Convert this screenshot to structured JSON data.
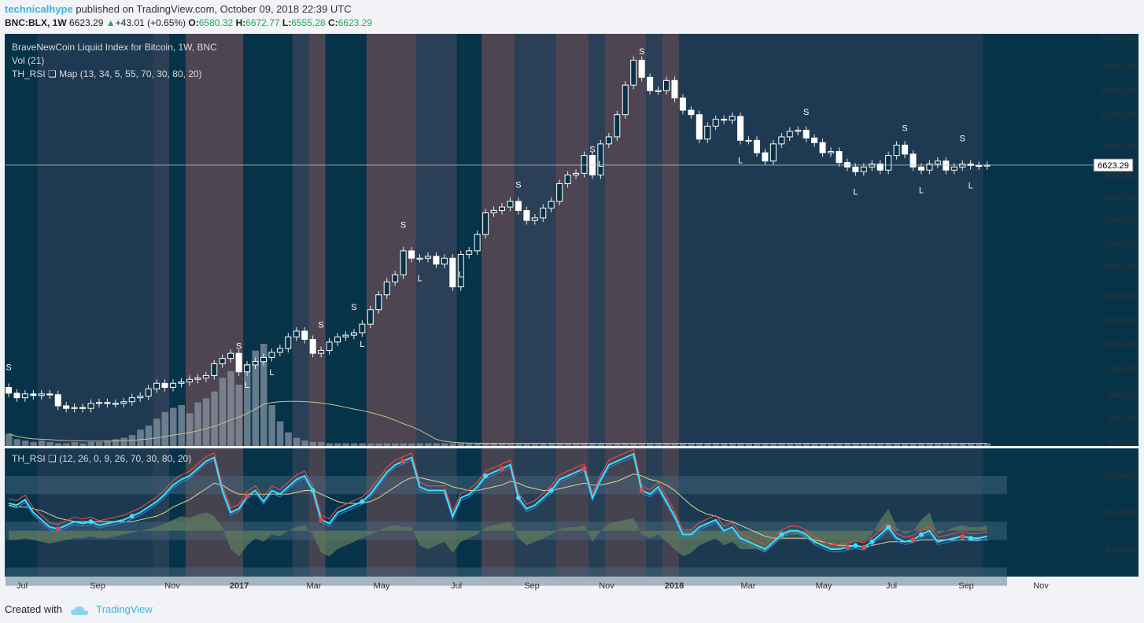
{
  "header": {
    "user": "technicalhype",
    "published_text": "published on TradingView.com, October 09, 2018 22:39 UTC",
    "symbol": "BNC:BLX, 1W",
    "price": "6623.29",
    "change": "+43.01 (+0.65%)",
    "o_label": "O:",
    "o_value": "6580.32",
    "h_label": "H:",
    "h_value": "6672.77",
    "l_label": "L:",
    "l_value": "6555.28",
    "c_label": "C:",
    "c_value": "6623.29"
  },
  "footer": {
    "created_with": "Created with",
    "brand": "TradingView"
  },
  "colors": {
    "panel_bg": "#073349",
    "band_red": "#4e4552",
    "band_slate": "#2b4056",
    "band_mid": "#1e3a52",
    "rsi_cyan": "#3ee0f5",
    "rsi_red": "#e04a4a",
    "rsi_white": "#ffffff",
    "signal_yellow": "#d8d890",
    "histo_green": "#5f7a5e",
    "volume_bar": "#8a9aa8",
    "volume_ma": "#c8c090"
  },
  "chart_data": [
    {
      "type": "candlestick",
      "title": "BraveNewCoin Liquid Index for Bitcoin, 1W, BNC",
      "indicator_labels": [
        "Vol (21)",
        "TH_RSI ❑ Map (13, 34, 5, 55, 70, 30, 80, 20)"
      ],
      "y_scale": "log",
      "y_ticks": [
        "24000.00",
        "18000.00",
        "14000.00",
        "11000.00",
        "8000.00",
        "6000.00",
        "4800.00",
        "3800.00",
        "3000.00",
        "2400.00",
        "1800.00",
        "1400.00",
        "1100.00",
        "860.00",
        "660.00",
        "520.00",
        "410.00"
      ],
      "last_price_label": "6623.29",
      "x_ticks": [
        "Jul",
        "Sep",
        "Nov",
        "2017",
        "Mar",
        "May",
        "Jul",
        "Sep",
        "Nov",
        "2018",
        "Mar",
        "May",
        "Jul",
        "Sep",
        "Nov"
      ],
      "x_ticks_bold": [
        "2017",
        "2018"
      ],
      "dates": [
        "2016-06-27",
        "2016-07-04",
        "2016-07-11",
        "2016-07-18",
        "2016-07-25",
        "2016-08-01",
        "2016-08-08",
        "2016-08-15",
        "2016-08-22",
        "2016-08-29",
        "2016-09-05",
        "2016-09-12",
        "2016-09-19",
        "2016-09-26",
        "2016-10-03",
        "2016-10-10",
        "2016-10-17",
        "2016-10-24",
        "2016-10-31",
        "2016-11-07",
        "2016-11-14",
        "2016-11-21",
        "2016-11-28",
        "2016-12-05",
        "2016-12-12",
        "2016-12-19",
        "2016-12-26",
        "2017-01-02",
        "2017-01-09",
        "2017-01-16",
        "2017-01-23",
        "2017-01-30",
        "2017-02-06",
        "2017-02-13",
        "2017-02-20",
        "2017-02-27",
        "2017-03-06",
        "2017-03-13",
        "2017-03-20",
        "2017-03-27",
        "2017-04-03",
        "2017-04-10",
        "2017-04-17",
        "2017-04-24",
        "2017-05-01",
        "2017-05-08",
        "2017-05-15",
        "2017-05-22",
        "2017-05-29",
        "2017-06-05",
        "2017-06-12",
        "2017-06-19",
        "2017-06-26",
        "2017-07-03",
        "2017-07-10",
        "2017-07-17",
        "2017-07-24",
        "2017-07-31",
        "2017-08-07",
        "2017-08-14",
        "2017-08-21",
        "2017-08-28",
        "2017-09-04",
        "2017-09-11",
        "2017-09-18",
        "2017-09-25",
        "2017-10-02",
        "2017-10-09",
        "2017-10-16",
        "2017-10-23",
        "2017-10-30",
        "2017-11-06",
        "2017-11-13",
        "2017-11-20",
        "2017-11-27",
        "2017-12-04",
        "2017-12-11",
        "2017-12-18",
        "2017-12-25",
        "2018-01-01",
        "2018-01-08",
        "2018-01-15",
        "2018-01-22",
        "2018-01-29",
        "2018-02-05",
        "2018-02-12",
        "2018-02-19",
        "2018-02-26",
        "2018-03-05",
        "2018-03-12",
        "2018-03-19",
        "2018-03-26",
        "2018-04-02",
        "2018-04-09",
        "2018-04-16",
        "2018-04-23",
        "2018-04-30",
        "2018-05-07",
        "2018-05-14",
        "2018-05-21",
        "2018-05-28",
        "2018-06-04",
        "2018-06-11",
        "2018-06-18",
        "2018-06-25",
        "2018-07-02",
        "2018-07-09",
        "2018-07-16",
        "2018-07-23",
        "2018-07-30",
        "2018-08-06",
        "2018-08-13",
        "2018-08-20",
        "2018-08-27",
        "2018-09-03",
        "2018-09-10",
        "2018-09-17",
        "2018-09-24",
        "2018-10-01",
        "2018-10-08"
      ],
      "close": [
        670,
        640,
        665,
        655,
        665,
        660,
        590,
        575,
        580,
        575,
        605,
        610,
        605,
        605,
        615,
        640,
        650,
        700,
        740,
        710,
        740,
        750,
        770,
        780,
        800,
        900,
        950,
        1000,
        830,
        890,
        920,
        960,
        1010,
        1050,
        1180,
        1250,
        1150,
        1000,
        1030,
        1120,
        1180,
        1200,
        1230,
        1340,
        1550,
        1800,
        2050,
        2200,
        2800,
        2600,
        2600,
        2650,
        2450,
        2600,
        1950,
        2700,
        2800,
        3300,
        4100,
        4200,
        4350,
        4600,
        4200,
        3800,
        3900,
        4300,
        4600,
        5500,
        6000,
        6100,
        7300,
        6000,
        8200,
        8800,
        11000,
        14800,
        19000,
        16000,
        14000,
        14000,
        15500,
        13000,
        11500,
        11000,
        8600,
        9800,
        10500,
        10400,
        10800,
        8500,
        8500,
        7500,
        6900,
        8200,
        8800,
        9300,
        9400,
        8700,
        8300,
        7500,
        7600,
        6800,
        6500,
        6200,
        6500,
        6700,
        6300,
        7300,
        8100,
        7400,
        6500,
        6300,
        6700,
        6900,
        6300,
        6500,
        6700,
        6600,
        6580,
        6623
      ],
      "volume": [
        9,
        5,
        4,
        3,
        4,
        3,
        2,
        2,
        3,
        2,
        3,
        3,
        4,
        5,
        6,
        8,
        12,
        15,
        20,
        25,
        28,
        30,
        24,
        32,
        35,
        40,
        50,
        55,
        45,
        60,
        70,
        75,
        30,
        18,
        10,
        6,
        4,
        3,
        3,
        2,
        2,
        2,
        2,
        2,
        2,
        2,
        2,
        2,
        2,
        2,
        2,
        2,
        2,
        2,
        2,
        2,
        2,
        2,
        2,
        2,
        2,
        2,
        2,
        2,
        2,
        2,
        2,
        2,
        2,
        2,
        2,
        2,
        2,
        2,
        2,
        2,
        2,
        2,
        2,
        2,
        2,
        2,
        2,
        2,
        2,
        2,
        2,
        2,
        2,
        2,
        2,
        2,
        2,
        2,
        2,
        2,
        2,
        2,
        2,
        2,
        2,
        2,
        2,
        2,
        2,
        2,
        2,
        2,
        2,
        2,
        2,
        2,
        2,
        2,
        2,
        2,
        2,
        2,
        2,
        2
      ],
      "volume_axis_visible": false,
      "signals": {
        "S": [
          "2016-06-27",
          "2017-01-09",
          "2017-03-20",
          "2017-04-17",
          "2017-05-29",
          "2017-09-04",
          "2017-11-06",
          "2017-12-18",
          "2018-05-07",
          "2018-07-30",
          "2018-09-17"
        ],
        "L": [
          "2017-01-16",
          "2017-02-06",
          "2017-04-24",
          "2017-06-12",
          "2017-07-17",
          "2017-11-13",
          "2018-03-12",
          "2018-06-18",
          "2018-08-13",
          "2018-09-24"
        ]
      },
      "background_bands": [
        {
          "from": "2016-06-27",
          "to": "2016-07-25",
          "color": "teal"
        },
        {
          "from": "2016-07-25",
          "to": "2016-10-31",
          "color": "mid"
        },
        {
          "from": "2016-10-31",
          "to": "2016-11-14",
          "color": "slate"
        },
        {
          "from": "2016-11-14",
          "to": "2016-11-28",
          "color": "teal"
        },
        {
          "from": "2016-11-28",
          "to": "2017-01-16",
          "color": "red"
        },
        {
          "from": "2017-01-16",
          "to": "2017-02-27",
          "color": "teal"
        },
        {
          "from": "2017-02-27",
          "to": "2017-03-13",
          "color": "slate"
        },
        {
          "from": "2017-03-13",
          "to": "2017-03-27",
          "color": "red"
        },
        {
          "from": "2017-03-27",
          "to": "2017-05-01",
          "color": "teal"
        },
        {
          "from": "2017-05-01",
          "to": "2017-06-12",
          "color": "red"
        },
        {
          "from": "2017-06-12",
          "to": "2017-07-17",
          "color": "slate"
        },
        {
          "from": "2017-07-17",
          "to": "2017-08-07",
          "color": "teal"
        },
        {
          "from": "2017-08-07",
          "to": "2017-09-04",
          "color": "red"
        },
        {
          "from": "2017-09-04",
          "to": "2017-10-09",
          "color": "slate"
        },
        {
          "from": "2017-10-09",
          "to": "2017-11-06",
          "color": "red"
        },
        {
          "from": "2017-11-06",
          "to": "2017-11-20",
          "color": "slate"
        },
        {
          "from": "2017-11-20",
          "to": "2017-12-25",
          "color": "red"
        },
        {
          "from": "2017-12-25",
          "to": "2018-01-08",
          "color": "slate"
        },
        {
          "from": "2018-01-08",
          "to": "2018-01-22",
          "color": "red"
        },
        {
          "from": "2018-01-22",
          "to": "2018-10-08",
          "color": "mid"
        }
      ]
    },
    {
      "type": "line",
      "title": "TH_RSI ❑ (12, 26, 0, 9, 26, 70, 30, 80, 20)",
      "y_ticks": [
        "80.0000",
        "60.0000",
        "40.0000"
      ],
      "ylim": [
        25,
        95
      ],
      "series": [
        {
          "name": "rsi",
          "values": [
            65,
            64,
            67,
            60,
            56,
            52,
            51,
            53,
            55,
            54,
            55,
            53,
            54,
            55,
            56,
            58,
            60,
            63,
            66,
            70,
            75,
            78,
            80,
            84,
            88,
            90,
            72,
            60,
            62,
            69,
            72,
            66,
            72,
            70,
            74,
            78,
            80,
            72,
            56,
            54,
            60,
            62,
            64,
            66,
            70,
            76,
            82,
            86,
            88,
            90,
            74,
            72,
            72,
            72,
            58,
            68,
            70,
            74,
            80,
            82,
            84,
            86,
            68,
            62,
            64,
            68,
            72,
            78,
            80,
            82,
            84,
            68,
            78,
            86,
            88,
            90,
            92,
            72,
            70,
            74,
            66,
            58,
            48,
            48,
            52,
            54,
            56,
            50,
            52,
            46,
            44,
            42,
            40,
            44,
            48,
            50,
            50,
            48,
            44,
            42,
            40,
            40,
            41,
            42,
            41,
            44,
            48,
            52,
            46,
            44,
            45,
            48,
            50,
            44,
            45,
            46,
            47,
            46,
            46,
            47
          ]
        },
        {
          "name": "signal",
          "values": [
            64,
            63,
            63,
            62,
            61,
            59,
            57,
            56,
            55,
            55,
            55,
            55,
            55,
            55,
            55,
            55,
            56,
            57,
            58,
            60,
            63,
            65,
            67,
            70,
            73,
            76,
            75,
            72,
            70,
            70,
            70,
            70,
            70,
            70,
            70,
            71,
            72,
            72,
            70,
            68,
            66,
            65,
            65,
            65,
            66,
            68,
            71,
            74,
            77,
            79,
            79,
            78,
            77,
            76,
            74,
            73,
            72,
            72,
            73,
            74,
            75,
            77,
            76,
            74,
            73,
            72,
            72,
            73,
            74,
            75,
            76,
            75,
            75,
            76,
            77,
            79,
            81,
            80,
            78,
            77,
            75,
            72,
            68,
            64,
            61,
            59,
            58,
            56,
            55,
            53,
            51,
            49,
            47,
            46,
            46,
            46,
            46,
            46,
            45,
            44,
            43,
            42,
            42,
            42,
            41,
            42,
            43,
            44,
            44,
            44,
            44,
            45,
            45,
            45,
            45,
            45,
            45,
            45,
            45,
            45
          ]
        },
        {
          "name": "histogram",
          "values": [
            45,
            45,
            46,
            45,
            44,
            43,
            44,
            45,
            46,
            46,
            47,
            46,
            46,
            47,
            48,
            49,
            50,
            51,
            52,
            54,
            56,
            58,
            57,
            59,
            60,
            58,
            52,
            40,
            36,
            42,
            46,
            44,
            48,
            47,
            50,
            52,
            53,
            48,
            38,
            36,
            40,
            42,
            44,
            46,
            48,
            50,
            52,
            53,
            52,
            52,
            42,
            40,
            42,
            44,
            38,
            44,
            46,
            48,
            52,
            53,
            54,
            55,
            46,
            42,
            44,
            46,
            48,
            51,
            52,
            52,
            53,
            44,
            50,
            54,
            55,
            56,
            57,
            48,
            46,
            48,
            44,
            40,
            36,
            38,
            42,
            44,
            46,
            42,
            44,
            40,
            40,
            40,
            38,
            42,
            46,
            48,
            48,
            46,
            43,
            42,
            40,
            40,
            42,
            44,
            44,
            48,
            56,
            62,
            52,
            48,
            50,
            56,
            60,
            48,
            50,
            52,
            53,
            52,
            52,
            53
          ]
        }
      ],
      "dots": {
        "cyan": [
          "2016-09-05",
          "2016-10-10",
          "2017-03-13",
          "2017-04-24",
          "2017-08-07",
          "2017-09-04",
          "2017-10-02",
          "2018-04-16",
          "2018-06-18",
          "2018-07-02",
          "2018-07-16",
          "2018-08-13",
          "2018-09-24"
        ],
        "red": [
          "2016-08-08",
          "2017-01-16",
          "2017-03-20",
          "2017-05-29",
          "2017-08-21",
          "2017-10-30",
          "2017-12-18",
          "2018-06-11",
          "2018-06-25",
          "2018-08-06",
          "2018-09-17"
        ]
      },
      "bands": [
        {
          "from": 20,
          "to": 30
        },
        {
          "from": 45,
          "to": 55
        },
        {
          "from": 70,
          "to": 80
        }
      ]
    }
  ]
}
